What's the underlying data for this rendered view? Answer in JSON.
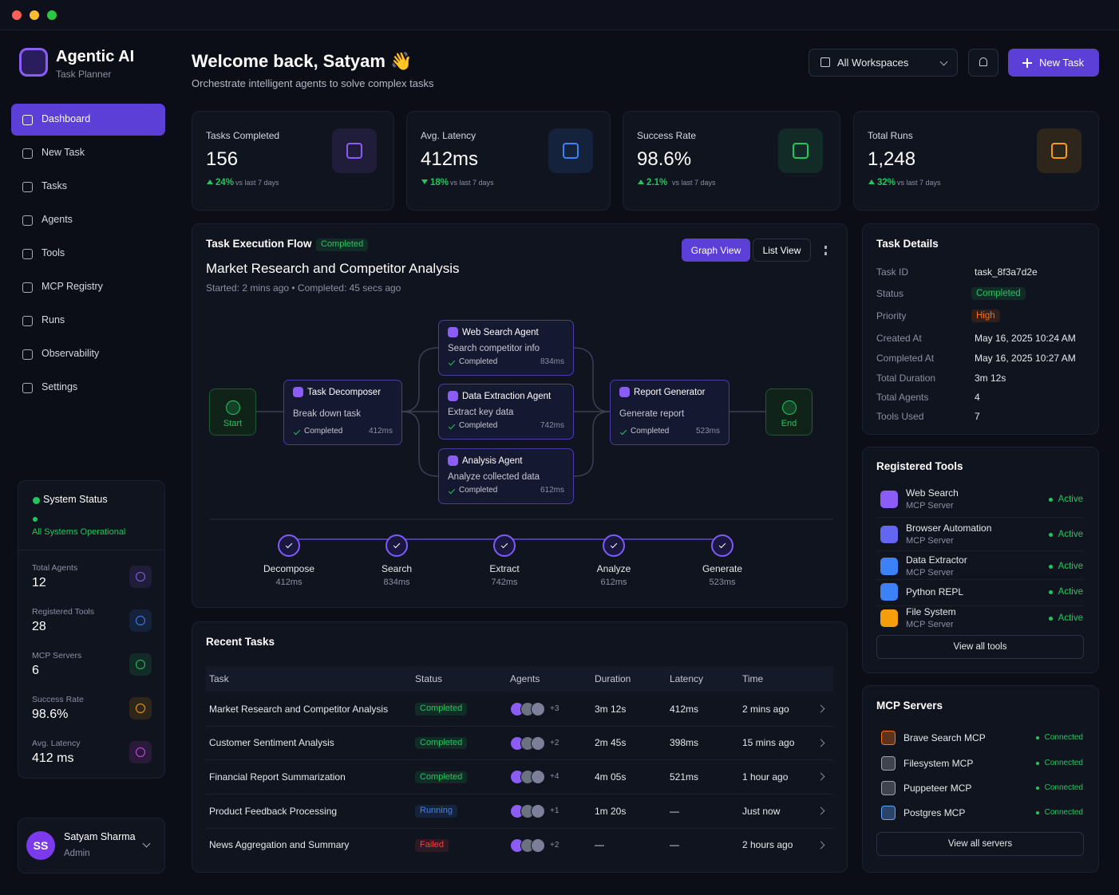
{
  "app": {
    "name": "Agentic AI",
    "subtitle": "Task Planner"
  },
  "nav": {
    "active": 0,
    "items": [
      "Dashboard",
      "New Task",
      "Tasks",
      "Agents",
      "Tools",
      "MCP Registry",
      "Runs",
      "Observability",
      "Settings"
    ]
  },
  "system_status": {
    "title": "System Status",
    "message": "All Systems Operational",
    "stats": [
      {
        "label": "Total Agents",
        "value": "12",
        "color": "#8b5cf6"
      },
      {
        "label": "Registered Tools",
        "value": "28",
        "color": "#3b82f6"
      },
      {
        "label": "MCP Servers",
        "value": "6",
        "color": "#22c55e"
      },
      {
        "label": "Success Rate",
        "value": "98.6%",
        "color": "#f59e0b"
      },
      {
        "label": "Avg. Latency",
        "value": "412 ms",
        "color": "#d946ef"
      }
    ]
  },
  "user": {
    "initials": "SS",
    "name": "Satyam Sharma",
    "role": "Admin"
  },
  "header": {
    "title": "Welcome back, Satyam 👋",
    "subtitle": "Orchestrate intelligent agents to solve complex tasks",
    "workspace": "All Workspaces",
    "new_task": "New Task"
  },
  "kpis": [
    {
      "label": "Tasks Completed",
      "value": "156",
      "change": "24%",
      "direction": "up",
      "note": "vs last 7 days",
      "color": "#8b5cf6"
    },
    {
      "label": "Avg. Latency",
      "value": "412ms",
      "change": "18%",
      "direction": "down",
      "note": "vs last 7 days",
      "color": "#3b82f6"
    },
    {
      "label": "Success Rate",
      "value": "98.6%",
      "change": "2.1%",
      "direction": "up",
      "note": "vs last 7 days",
      "color": "#22c55e"
    },
    {
      "label": "Total Runs",
      "value": "1,248",
      "change": "32%",
      "direction": "up",
      "note": "vs last 7 days",
      "color": "#f59e0b"
    }
  ],
  "flow": {
    "title": "Task Execution Flow",
    "status": "Completed",
    "views": [
      "Graph View",
      "List View"
    ],
    "task": "Market Research and Competitor Analysis",
    "meta": "Started: 2 mins ago • Completed: 45 secs ago",
    "start": "Start",
    "end": "End",
    "nodes": [
      {
        "name": "Task Decomposer",
        "desc": "Break down task",
        "status": "Completed",
        "time": "412ms"
      },
      {
        "name": "Web Search Agent",
        "desc": "Search competitor info",
        "status": "Completed",
        "time": "834ms"
      },
      {
        "name": "Data Extraction Agent",
        "desc": "Extract key data",
        "status": "Completed",
        "time": "742ms"
      },
      {
        "name": "Analysis Agent",
        "desc": "Analyze collected data",
        "status": "Completed",
        "time": "612ms"
      },
      {
        "name": "Report Generator",
        "desc": "Generate report",
        "status": "Completed",
        "time": "523ms"
      }
    ],
    "steps": [
      {
        "name": "Decompose",
        "time": "412ms"
      },
      {
        "name": "Search",
        "time": "834ms"
      },
      {
        "name": "Extract",
        "time": "742ms"
      },
      {
        "name": "Analyze",
        "time": "612ms"
      },
      {
        "name": "Generate",
        "time": "523ms"
      }
    ]
  },
  "recent": {
    "title": "Recent Tasks",
    "columns": [
      "Task",
      "Status",
      "Agents",
      "Duration",
      "Latency",
      "Time"
    ],
    "rows": [
      {
        "task": "Market Research and Competitor Analysis",
        "status": "Completed",
        "color": "#22c55e",
        "agents": "+3",
        "duration": "3m 12s",
        "latency": "412ms",
        "time": "2 mins ago"
      },
      {
        "task": "Customer Sentiment Analysis",
        "status": "Completed",
        "color": "#22c55e",
        "agents": "+2",
        "duration": "2m 45s",
        "latency": "398ms",
        "time": "15 mins ago"
      },
      {
        "task": "Financial Report Summarization",
        "status": "Completed",
        "color": "#22c55e",
        "agents": "+4",
        "duration": "4m 05s",
        "latency": "521ms",
        "time": "1 hour ago"
      },
      {
        "task": "Product Feedback Processing",
        "status": "Running",
        "color": "#3b82f6",
        "agents": "+1",
        "duration": "1m 20s",
        "latency": "—",
        "time": "Just now"
      },
      {
        "task": "News Aggregation and Summary",
        "status": "Failed",
        "color": "#ef4444",
        "agents": "+2",
        "duration": "—",
        "latency": "—",
        "time": "2 hours ago"
      }
    ]
  },
  "details": {
    "title": "Task Details",
    "fields": [
      {
        "label": "Task ID",
        "value": "task_8f3a7d2e"
      },
      {
        "label": "Status",
        "value": "Completed",
        "color": "#22c55e"
      },
      {
        "label": "Priority",
        "value": "High",
        "color": "#f97316"
      },
      {
        "label": "Created At",
        "value": "May 16, 2025 10:24 AM"
      },
      {
        "label": "Completed At",
        "value": "May 16, 2025 10:27 AM"
      },
      {
        "label": "Total Duration",
        "value": "3m 12s"
      },
      {
        "label": "Total Agents",
        "value": "4"
      },
      {
        "label": "Tools Used",
        "value": "7"
      }
    ]
  },
  "tools": {
    "title": "Registered Tools",
    "button": "View all tools",
    "items": [
      {
        "name": "Web Search",
        "type": "MCP Server",
        "status": "Active",
        "color": "#8b5cf6"
      },
      {
        "name": "Browser Automation",
        "type": "MCP Server",
        "status": "Active",
        "color": "#6366f1"
      },
      {
        "name": "Data Extractor",
        "type": "MCP Server",
        "status": "Active",
        "color": "#3b82f6"
      },
      {
        "name": "Python REPL",
        "status": "Active",
        "color": "#3b82f6"
      },
      {
        "name": "File System",
        "type": "MCP Server",
        "status": "Active",
        "color": "#f59e0b"
      }
    ]
  },
  "servers": {
    "title": "MCP Servers",
    "button": "View all servers",
    "items": [
      {
        "name": "Brave Search MCP",
        "status": "Connected",
        "color": "#f97316"
      },
      {
        "name": "Filesystem MCP",
        "status": "Connected",
        "color": "#9ca3af"
      },
      {
        "name": "Puppeteer MCP",
        "status": "Connected",
        "color": "#9ca3af"
      },
      {
        "name": "Postgres MCP",
        "status": "Connected",
        "color": "#60a5fa"
      }
    ]
  }
}
